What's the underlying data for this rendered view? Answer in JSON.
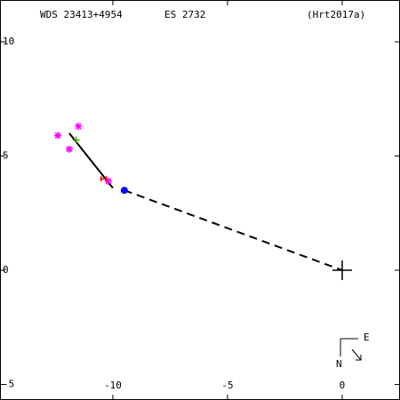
{
  "chart_data": {
    "type": "scatter",
    "title": "WDS 23413+4954",
    "subtitle": "ES 2732",
    "reference": "(Hrt2017a)",
    "compass": {
      "east": "E",
      "north": "N"
    },
    "xlim": [
      -14.92,
      2.52
    ],
    "ylim": [
      -5.68,
      11.83
    ],
    "xticks": [
      -10,
      -5,
      0
    ],
    "yticks": [
      10,
      5,
      0,
      -5
    ],
    "series": [
      {
        "marker": "asterisk",
        "color": "#ff00ff",
        "x": [
          -12.4,
          -11.5,
          -11.9,
          -10.2
        ],
        "y": [
          5.9,
          6.3,
          5.3,
          3.9
        ]
      },
      {
        "marker": "plus",
        "color": "#44aa00",
        "x": [
          -11.6
        ],
        "y": [
          5.7
        ]
      },
      {
        "marker": "h",
        "color": "#dd0000",
        "x": [
          -10.4
        ],
        "y": [
          4.0
        ]
      },
      {
        "marker": "dot",
        "color": "#0000ff",
        "x": [
          -9.5
        ],
        "y": [
          3.5
        ]
      },
      {
        "marker": "primary",
        "color": "#000000",
        "x": [
          0
        ],
        "y": [
          0
        ]
      }
    ],
    "lines": [
      {
        "color": "#000000",
        "dashed": false,
        "x": [
          -11.9,
          -10.0
        ],
        "y": [
          6.0,
          3.6
        ]
      },
      {
        "color": "#000000",
        "dashed": true,
        "x": [
          -9.5,
          0
        ],
        "y": [
          3.5,
          0
        ]
      }
    ]
  }
}
